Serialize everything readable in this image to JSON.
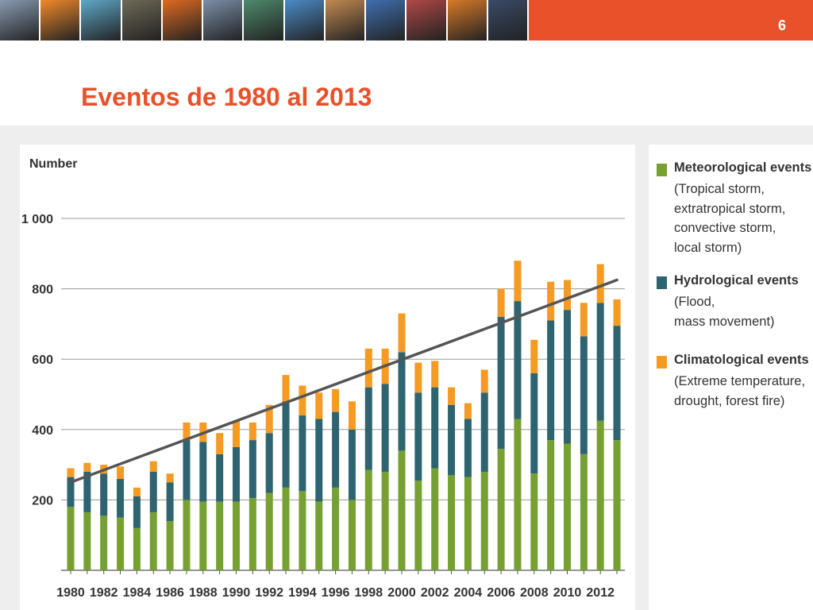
{
  "slide": {
    "title": "Eventos de 1980 al 2013",
    "page_number": "6",
    "header_color": "#e8512a",
    "photo_strip": [
      "industry-photo",
      "sunset-photo",
      "water-photo",
      "machinery-photo",
      "flare-photo",
      "towers-photo",
      "grass-photo",
      "sea-photo",
      "brain-scan-photo",
      "factory-photo",
      "containers-photo",
      "crane-photo",
      "ship-photo"
    ]
  },
  "legend": [
    {
      "name": "Meteorological events",
      "detail": [
        "(Tropical storm,",
        "extratropical storm,",
        "convective storm,",
        "local storm)"
      ],
      "color": "#76a032"
    },
    {
      "name": "Hydrological events",
      "detail": [
        "(Flood,",
        "mass movement)"
      ],
      "color": "#2e6470"
    },
    {
      "name": "Climatological events",
      "detail": [
        "(Extreme temperature,",
        "drought, forest fire)"
      ],
      "color": "#f59a23"
    }
  ],
  "chart_data": {
    "type": "bar",
    "stacked": true,
    "ylabel": "Number",
    "ylim": [
      0,
      1000
    ],
    "yticks": [
      200,
      400,
      600,
      800,
      1000
    ],
    "ytick_labels": [
      "200",
      "400",
      "600",
      "800",
      "1 000"
    ],
    "grid": true,
    "legend_position": "right",
    "categories": [
      "1980",
      "1981",
      "1982",
      "1983",
      "1984",
      "1985",
      "1986",
      "1987",
      "1988",
      "1989",
      "1990",
      "1991",
      "1992",
      "1993",
      "1994",
      "1995",
      "1996",
      "1997",
      "1998",
      "1999",
      "2000",
      "2001",
      "2002",
      "2003",
      "2004",
      "2005",
      "2006",
      "2007",
      "2008",
      "2009",
      "2010",
      "2011",
      "2012",
      "2013"
    ],
    "xtick_labels": [
      "1980",
      "1982",
      "1984",
      "1986",
      "1988",
      "1990",
      "1992",
      "1994",
      "1996",
      "1998",
      "2000",
      "2002",
      "2004",
      "2006",
      "2008",
      "2010",
      "2012"
    ],
    "series": [
      {
        "name": "Meteorological events",
        "color": "#76a032",
        "values": [
          180,
          165,
          155,
          150,
          120,
          165,
          140,
          200,
          195,
          195,
          195,
          205,
          220,
          235,
          225,
          195,
          235,
          200,
          285,
          280,
          340,
          255,
          290,
          270,
          265,
          280,
          345,
          430,
          275,
          370,
          360,
          330,
          425,
          370
        ]
      },
      {
        "name": "Hydrological events",
        "color": "#2e6470",
        "values": [
          85,
          115,
          120,
          110,
          90,
          115,
          110,
          170,
          170,
          135,
          155,
          165,
          170,
          245,
          215,
          235,
          215,
          200,
          235,
          250,
          280,
          250,
          230,
          200,
          165,
          225,
          375,
          335,
          285,
          340,
          380,
          335,
          335,
          325
        ]
      },
      {
        "name": "Climatological events",
        "color": "#f59a23",
        "values": [
          25,
          25,
          25,
          35,
          25,
          30,
          25,
          50,
          55,
          60,
          75,
          50,
          80,
          75,
          85,
          75,
          65,
          80,
          110,
          100,
          110,
          85,
          75,
          50,
          45,
          65,
          80,
          115,
          95,
          110,
          85,
          95,
          110,
          75
        ]
      }
    ],
    "trend_line": {
      "color": "#555555",
      "x": [
        "1980",
        "2013"
      ],
      "y": [
        250,
        825
      ]
    }
  }
}
